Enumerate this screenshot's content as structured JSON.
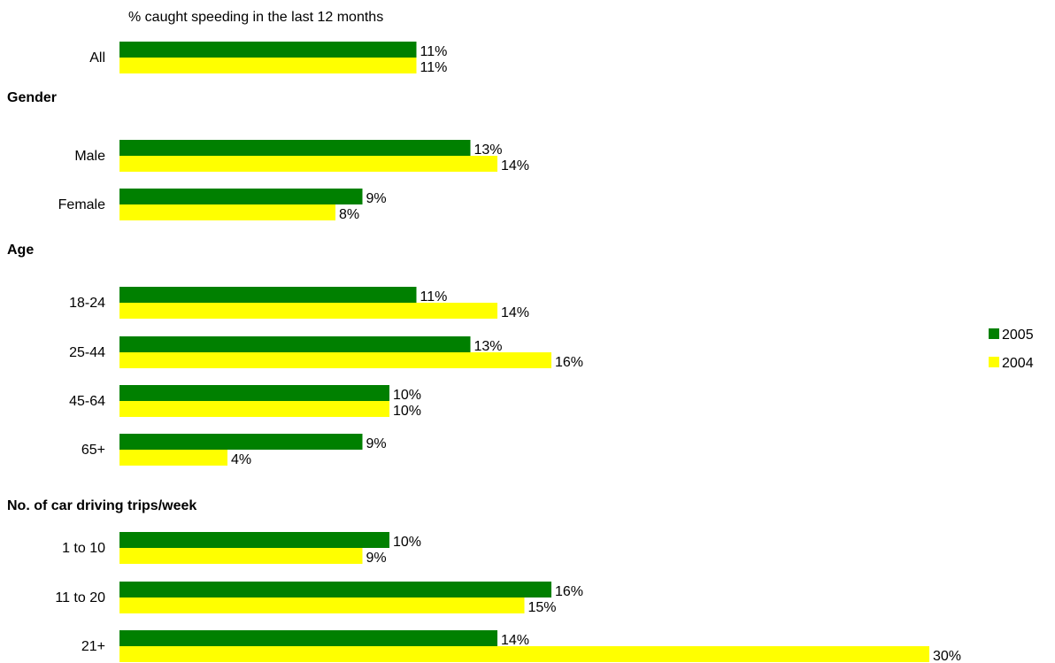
{
  "chart_data": {
    "type": "bar",
    "orientation": "horizontal",
    "title": "% caught speeding in the last 12 months",
    "series": [
      {
        "name": "2005",
        "color": "#008000"
      },
      {
        "name": "2004",
        "color": "#FFFF00"
      }
    ],
    "groups": [
      {
        "heading": "",
        "rows": [
          {
            "label": "All",
            "values": [
              11,
              11
            ],
            "data_labels": [
              "11%",
              "11%"
            ]
          }
        ]
      },
      {
        "heading": "Gender",
        "rows": [
          {
            "label": "Male",
            "values": [
              13,
              14
            ],
            "data_labels": [
              "13%",
              "14%"
            ]
          },
          {
            "label": "Female",
            "values": [
              9,
              8
            ],
            "data_labels": [
              "9%",
              "8%"
            ]
          }
        ]
      },
      {
        "heading": "Age",
        "rows": [
          {
            "label": "18-24",
            "values": [
              11,
              14
            ],
            "data_labels": [
              "11%",
              "14%"
            ]
          },
          {
            "label": "25-44",
            "values": [
              13,
              16
            ],
            "data_labels": [
              "13%",
              "16%"
            ]
          },
          {
            "label": "45-64",
            "values": [
              10,
              10
            ],
            "data_labels": [
              "10%",
              "10%"
            ]
          },
          {
            "label": "65+",
            "values": [
              9,
              4
            ],
            "data_labels": [
              "9%",
              "4%"
            ]
          }
        ]
      },
      {
        "heading": "No. of car driving trips/week",
        "rows": [
          {
            "label": "1 to 10",
            "values": [
              10,
              9
            ],
            "data_labels": [
              "10%",
              "9%"
            ]
          },
          {
            "label": "11 to 20",
            "values": [
              16,
              15
            ],
            "data_labels": [
              "16%",
              "15%"
            ]
          },
          {
            "label": "21+",
            "values": [
              14,
              30
            ],
            "data_labels": [
              "14%",
              "30%"
            ]
          }
        ]
      }
    ],
    "xlim": [
      0,
      30
    ],
    "grid": false,
    "legend": "right"
  }
}
